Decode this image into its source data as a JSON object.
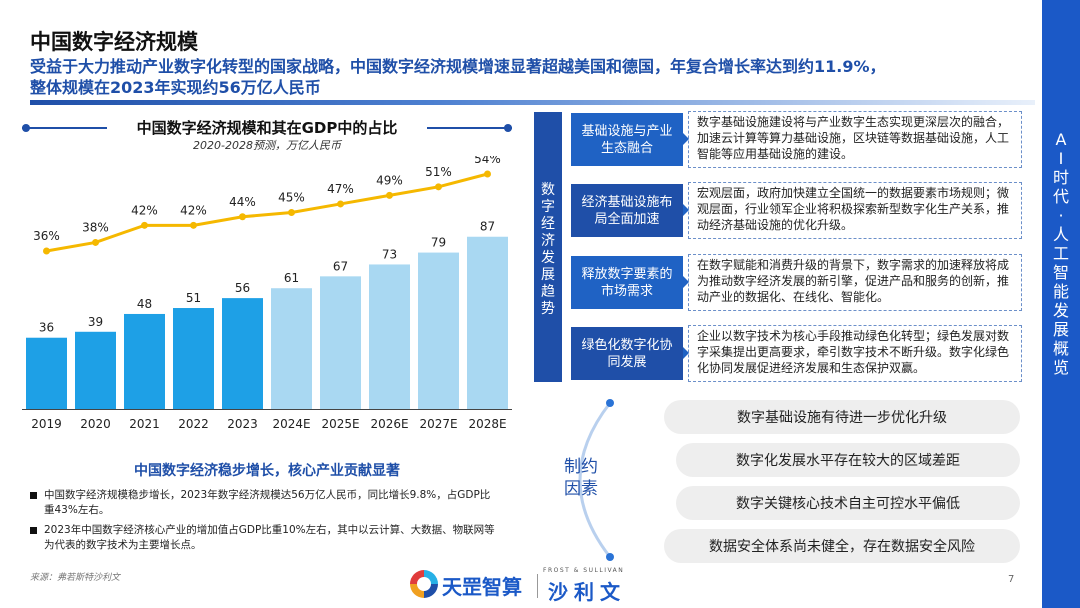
{
  "header": {
    "title": "中国数字经济规模",
    "subtitle_line1": "受益于大力推动产业数字化转型的国家战略，中国数字经济规模增速显著超越美国和德国，年复合增长率达到约11.9%，",
    "subtitle_line2": "整体规模在2023年实现约56万亿人民币"
  },
  "side_band": {
    "chars": [
      "A",
      "I",
      "时",
      "代",
      "·",
      "人",
      "工",
      "智",
      "能",
      "发",
      "展",
      "概",
      "览"
    ]
  },
  "chart_panel": {
    "title": "中国数字经济规模和其在GDP中的占比",
    "subtitle": "2020-2028预测，万亿人民币"
  },
  "chart_data": {
    "type": "bar",
    "categories": [
      "2019",
      "2020",
      "2021",
      "2022",
      "2023",
      "2024E",
      "2025E",
      "2026E",
      "2027E",
      "2028E"
    ],
    "series": [
      {
        "values": [
          36,
          39,
          48,
          51,
          56,
          61,
          67,
          73,
          79,
          87
        ],
        "forecast_from_index": 5
      },
      {
        "type": "line",
        "values": [
          36,
          38,
          42,
          42,
          44,
          45,
          47,
          49,
          51,
          54
        ],
        "unit": "%"
      }
    ],
    "title": "中国数字经济规模和其在GDP中的占比",
    "subtitle": "2020-2028预测，万亿人民币",
    "colors": {
      "actual": "#1ea0e6",
      "forecast": "#a9d8f2",
      "line": "#f5b800"
    },
    "grid": false
  },
  "summary": {
    "title": "中国数字经济稳步增长，核心产业贡献显著",
    "bullet1": "中国数字经济规模稳步增长，2023年数字经济规模达56万亿人民币，同比增长9.8%，占GDP比重43%左右。",
    "bullet2": "2023年中国数字经济核心产业的增加值占GDP比重10%左右，其中以云计算、大数据、物联网等为代表的数字技术为主要增长点。"
  },
  "source": "来源：弗若斯特沙利文",
  "page_number": "7",
  "logo": {
    "brand1": "天罡智算",
    "frost": "FROST & SULLIVAN",
    "brand2": "沙利文"
  },
  "trends": {
    "label_chars": [
      "数",
      "字",
      "经",
      "济",
      "发",
      "展",
      "趋",
      "势"
    ],
    "items": [
      {
        "title": "基础设施与产业生态融合",
        "desc": "数字基础设施建设将与产业数字生态实现更深层次的融合，加速云计算等算力基础设施，区块链等数据基础设施，人工智能等应用基础设施的建设。"
      },
      {
        "title": "经济基础设施布局全面加速",
        "desc": "宏观层面，政府加快建立全国统一的数据要素市场规则；微观层面，行业领军企业将积极探索新型数字化生产关系，推动经济基础设施的优化升级。"
      },
      {
        "title": "释放数字要素的市场需求",
        "desc": "在数字赋能和消费升级的背景下，数字需求的加速释放将成为推动数字经济发展的新引擎，促进产品和服务的创新，推动产业的数据化、在线化、智能化。"
      },
      {
        "title": "绿色化数字化协同发展",
        "desc": "企业以数字技术为核心手段推动绿色化转型；绿色发展对数字采集提出更高要求，牵引数字技术不断升级。数字化绿色化协同发展促进经济发展和生态保护双赢。"
      }
    ]
  },
  "constraints": {
    "label_line1": "制约",
    "label_line2": "因素",
    "items": [
      "数字基础设施有待进一步优化升级",
      "数字化发展水平存在较大的区域差距",
      "数字关键核心技术自主可控水平偏低",
      "数据安全体系尚未健全，存在数据安全风险"
    ]
  }
}
